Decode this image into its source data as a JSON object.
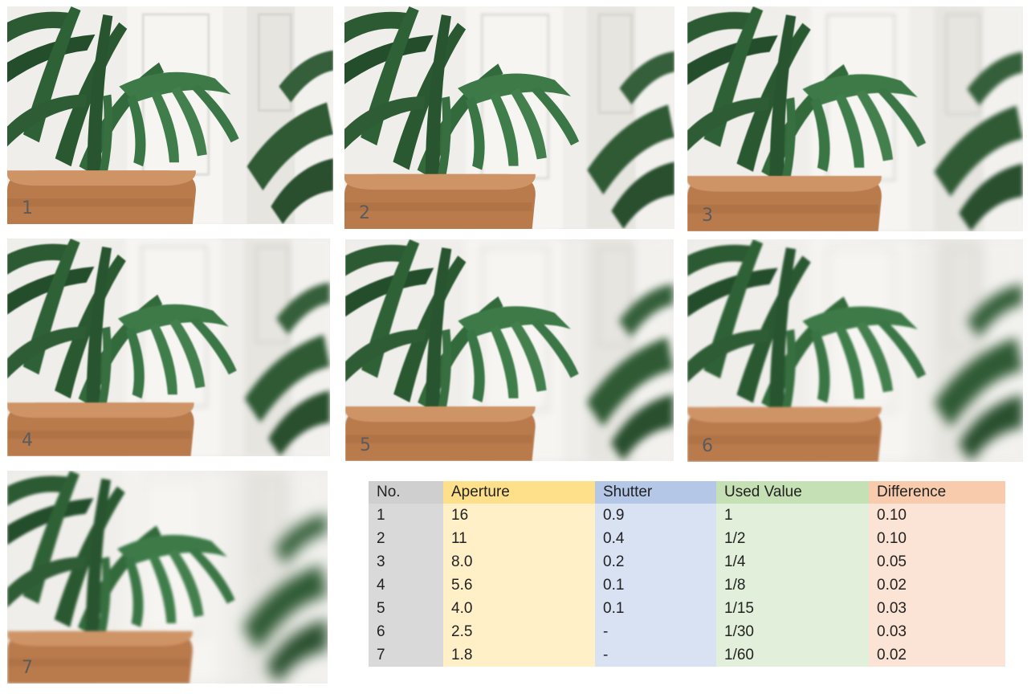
{
  "colors": {
    "no_header": "#d0cfcf",
    "no_cell": "#d9d9d9",
    "aperture_header": "#ffe08a",
    "aperture_cell": "#fff0c8",
    "shutter_header": "#b4c7e7",
    "shutter_cell": "#d9e2f3",
    "used_header": "#c5e0b4",
    "used_cell": "#e2efda",
    "diff_header": "#f8cbad",
    "diff_cell": "#fbe4d5"
  },
  "photos": [
    {
      "label": "1",
      "blur_level": 1
    },
    {
      "label": "2",
      "blur_level": 2
    },
    {
      "label": "3",
      "blur_level": 3
    },
    {
      "label": "4",
      "blur_level": 4
    },
    {
      "label": "5",
      "blur_level": 5
    },
    {
      "label": "6",
      "blur_level": 6
    },
    {
      "label": "7",
      "blur_level": 7
    }
  ],
  "table": {
    "headers": [
      "No.",
      "Aperture",
      "Shutter",
      "Used Value",
      "Difference"
    ],
    "rows": [
      [
        "1",
        "16",
        "0.9",
        "1",
        "0.10"
      ],
      [
        "2",
        "11",
        "0.4",
        "1/2",
        "0.10"
      ],
      [
        "3",
        "8.0",
        "0.2",
        "1/4",
        "0.05"
      ],
      [
        "4",
        "5.6",
        "0.1",
        "1/8",
        "0.02"
      ],
      [
        "5",
        "4.0",
        "0.1",
        "1/15",
        "0.03"
      ],
      [
        "6",
        "2.5",
        "-",
        "1/30",
        "0.03"
      ],
      [
        "7",
        "1.8",
        "-",
        "1/60",
        "0.02"
      ]
    ]
  }
}
